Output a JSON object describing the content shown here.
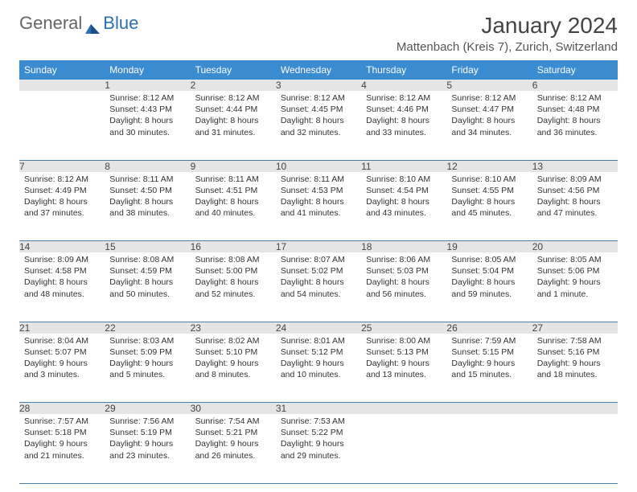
{
  "logo": {
    "part1": "General",
    "part2": "Blue"
  },
  "title": "January 2024",
  "location": "Mattenbach (Kreis 7), Zurich, Switzerland",
  "colors": {
    "header_bg": "#3a8bd0",
    "header_fg": "#ffffff",
    "daynum_bg": "#e5e5e5",
    "rule": "#4a7fa8",
    "text": "#333333"
  },
  "weekdays": [
    "Sunday",
    "Monday",
    "Tuesday",
    "Wednesday",
    "Thursday",
    "Friday",
    "Saturday"
  ],
  "weeks": [
    [
      {
        "n": "",
        "sunrise": "",
        "sunset": "",
        "daylight": ""
      },
      {
        "n": "1",
        "sunrise": "8:12 AM",
        "sunset": "4:43 PM",
        "daylight": "8 hours and 30 minutes."
      },
      {
        "n": "2",
        "sunrise": "8:12 AM",
        "sunset": "4:44 PM",
        "daylight": "8 hours and 31 minutes."
      },
      {
        "n": "3",
        "sunrise": "8:12 AM",
        "sunset": "4:45 PM",
        "daylight": "8 hours and 32 minutes."
      },
      {
        "n": "4",
        "sunrise": "8:12 AM",
        "sunset": "4:46 PM",
        "daylight": "8 hours and 33 minutes."
      },
      {
        "n": "5",
        "sunrise": "8:12 AM",
        "sunset": "4:47 PM",
        "daylight": "8 hours and 34 minutes."
      },
      {
        "n": "6",
        "sunrise": "8:12 AM",
        "sunset": "4:48 PM",
        "daylight": "8 hours and 36 minutes."
      }
    ],
    [
      {
        "n": "7",
        "sunrise": "8:12 AM",
        "sunset": "4:49 PM",
        "daylight": "8 hours and 37 minutes."
      },
      {
        "n": "8",
        "sunrise": "8:11 AM",
        "sunset": "4:50 PM",
        "daylight": "8 hours and 38 minutes."
      },
      {
        "n": "9",
        "sunrise": "8:11 AM",
        "sunset": "4:51 PM",
        "daylight": "8 hours and 40 minutes."
      },
      {
        "n": "10",
        "sunrise": "8:11 AM",
        "sunset": "4:53 PM",
        "daylight": "8 hours and 41 minutes."
      },
      {
        "n": "11",
        "sunrise": "8:10 AM",
        "sunset": "4:54 PM",
        "daylight": "8 hours and 43 minutes."
      },
      {
        "n": "12",
        "sunrise": "8:10 AM",
        "sunset": "4:55 PM",
        "daylight": "8 hours and 45 minutes."
      },
      {
        "n": "13",
        "sunrise": "8:09 AM",
        "sunset": "4:56 PM",
        "daylight": "8 hours and 47 minutes."
      }
    ],
    [
      {
        "n": "14",
        "sunrise": "8:09 AM",
        "sunset": "4:58 PM",
        "daylight": "8 hours and 48 minutes."
      },
      {
        "n": "15",
        "sunrise": "8:08 AM",
        "sunset": "4:59 PM",
        "daylight": "8 hours and 50 minutes."
      },
      {
        "n": "16",
        "sunrise": "8:08 AM",
        "sunset": "5:00 PM",
        "daylight": "8 hours and 52 minutes."
      },
      {
        "n": "17",
        "sunrise": "8:07 AM",
        "sunset": "5:02 PM",
        "daylight": "8 hours and 54 minutes."
      },
      {
        "n": "18",
        "sunrise": "8:06 AM",
        "sunset": "5:03 PM",
        "daylight": "8 hours and 56 minutes."
      },
      {
        "n": "19",
        "sunrise": "8:05 AM",
        "sunset": "5:04 PM",
        "daylight": "8 hours and 59 minutes."
      },
      {
        "n": "20",
        "sunrise": "8:05 AM",
        "sunset": "5:06 PM",
        "daylight": "9 hours and 1 minute."
      }
    ],
    [
      {
        "n": "21",
        "sunrise": "8:04 AM",
        "sunset": "5:07 PM",
        "daylight": "9 hours and 3 minutes."
      },
      {
        "n": "22",
        "sunrise": "8:03 AM",
        "sunset": "5:09 PM",
        "daylight": "9 hours and 5 minutes."
      },
      {
        "n": "23",
        "sunrise": "8:02 AM",
        "sunset": "5:10 PM",
        "daylight": "9 hours and 8 minutes."
      },
      {
        "n": "24",
        "sunrise": "8:01 AM",
        "sunset": "5:12 PM",
        "daylight": "9 hours and 10 minutes."
      },
      {
        "n": "25",
        "sunrise": "8:00 AM",
        "sunset": "5:13 PM",
        "daylight": "9 hours and 13 minutes."
      },
      {
        "n": "26",
        "sunrise": "7:59 AM",
        "sunset": "5:15 PM",
        "daylight": "9 hours and 15 minutes."
      },
      {
        "n": "27",
        "sunrise": "7:58 AM",
        "sunset": "5:16 PM",
        "daylight": "9 hours and 18 minutes."
      }
    ],
    [
      {
        "n": "28",
        "sunrise": "7:57 AM",
        "sunset": "5:18 PM",
        "daylight": "9 hours and 21 minutes."
      },
      {
        "n": "29",
        "sunrise": "7:56 AM",
        "sunset": "5:19 PM",
        "daylight": "9 hours and 23 minutes."
      },
      {
        "n": "30",
        "sunrise": "7:54 AM",
        "sunset": "5:21 PM",
        "daylight": "9 hours and 26 minutes."
      },
      {
        "n": "31",
        "sunrise": "7:53 AM",
        "sunset": "5:22 PM",
        "daylight": "9 hours and 29 minutes."
      },
      {
        "n": "",
        "sunrise": "",
        "sunset": "",
        "daylight": ""
      },
      {
        "n": "",
        "sunrise": "",
        "sunset": "",
        "daylight": ""
      },
      {
        "n": "",
        "sunrise": "",
        "sunset": "",
        "daylight": ""
      }
    ]
  ],
  "labels": {
    "sunrise": "Sunrise:",
    "sunset": "Sunset:",
    "daylight": "Daylight:"
  }
}
